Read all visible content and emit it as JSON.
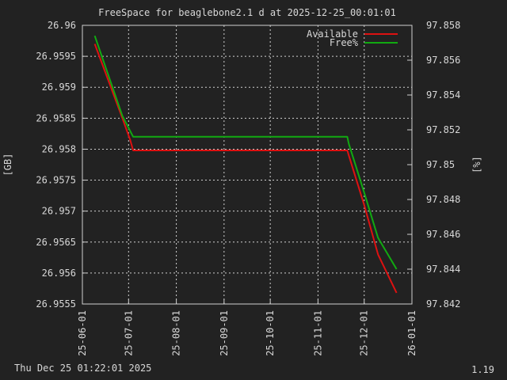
{
  "chart_data": {
    "type": "line",
    "title": "FreeSpace for beaglebone2.1 d at 2025-12-25_00:01:01",
    "ylabel": "[GB]",
    "y2label": "[%]",
    "footer_left": "Thu Dec 25 01:22:01 2025",
    "footer_right": "1.19",
    "xlim": [
      "2025-06-01",
      "2026-01-01"
    ],
    "ylim": [
      26.9555,
      26.96
    ],
    "y2lim": [
      97.842,
      97.858
    ],
    "xticks": [
      "25-06-01",
      "25-07-01",
      "25-08-01",
      "25-09-01",
      "25-10-01",
      "25-11-01",
      "25-12-01",
      "26-01-01"
    ],
    "yticks": [
      "26.9555",
      "26.956",
      "26.9565",
      "26.957",
      "26.9575",
      "26.958",
      "26.9585",
      "26.959",
      "26.9595",
      "26.96"
    ],
    "y2ticks": [
      "97.842",
      "97.844",
      "97.846",
      "97.848",
      "97.85",
      "97.852",
      "97.854",
      "97.856",
      "97.858"
    ],
    "grid": true,
    "legend_position": "top-right",
    "series": [
      {
        "name": "Available",
        "axis": "y",
        "color": "#dd1111",
        "points": [
          [
            "2025-06-09",
            26.9597
          ],
          [
            "2025-06-27",
            26.9585
          ],
          [
            "2025-07-02",
            26.95815
          ],
          [
            "2025-07-04",
            26.95798
          ],
          [
            "2025-11-20",
            26.95798
          ],
          [
            "2025-11-21",
            26.9579
          ],
          [
            "2025-12-01",
            26.9571
          ],
          [
            "2025-12-10",
            26.9563
          ],
          [
            "2025-12-22",
            26.95568
          ]
        ]
      },
      {
        "name": "Free%",
        "axis": "y2",
        "color": "#11aa11",
        "points": [
          [
            "2025-06-09",
            97.8574
          ],
          [
            "2025-06-27",
            97.8528
          ],
          [
            "2025-07-04",
            97.8516
          ],
          [
            "2025-11-20",
            97.8516
          ],
          [
            "2025-11-21",
            97.8512
          ],
          [
            "2025-12-01",
            97.8484
          ],
          [
            "2025-12-10",
            97.8458
          ],
          [
            "2025-12-22",
            97.844
          ]
        ]
      }
    ]
  }
}
